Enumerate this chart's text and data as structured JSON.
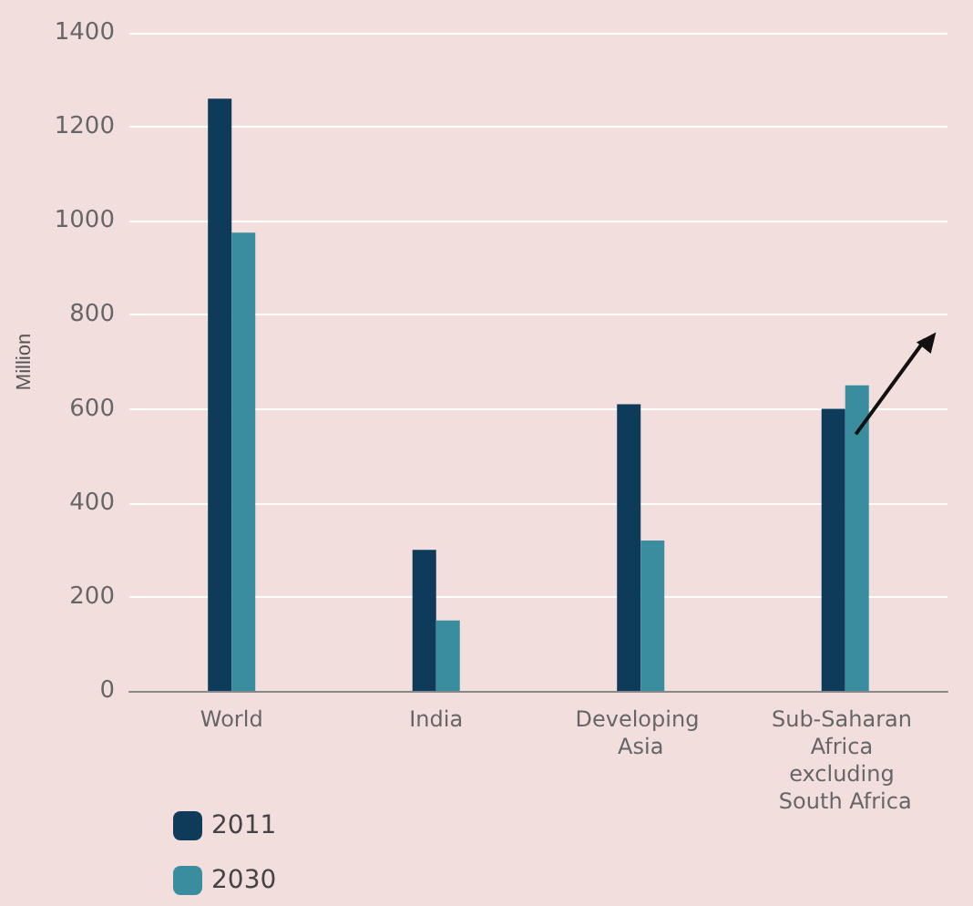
{
  "chart_data": {
    "type": "bar",
    "ylabel": "Million",
    "categories": [
      "World",
      "India",
      "Developing Asia",
      "Sub-Saharan Africa excluding South Africa"
    ],
    "series": [
      {
        "name": "2011",
        "color": "#0f3b5a",
        "values": [
          1260,
          300,
          610,
          600
        ]
      },
      {
        "name": "2030",
        "color": "#3a8d9e",
        "values": [
          975,
          150,
          320,
          650
        ]
      }
    ],
    "ylim": [
      0,
      1400
    ],
    "yticks": [
      0,
      200,
      400,
      600,
      800,
      1000,
      1200,
      1400
    ],
    "grid": "y",
    "legend": "bottom left"
  }
}
